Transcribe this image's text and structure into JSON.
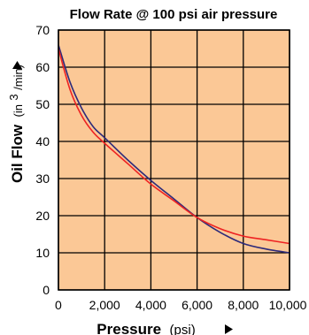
{
  "chart_data": {
    "type": "line",
    "title": "Flow Rate @ 100 psi air pressure",
    "xlabel": "Pressure",
    "xlabel_unit": "(psi)",
    "ylabel": "Oil Flow",
    "ylabel_unit_open": "(in",
    "ylabel_unit_sup": "3",
    "ylabel_unit_close": "/min)",
    "xlim": [
      0,
      10000
    ],
    "ylim": [
      0,
      70
    ],
    "x_ticks": [
      0,
      2000,
      4000,
      6000,
      8000,
      10000
    ],
    "x_tick_labels": [
      "0",
      "2,000",
      "4,000",
      "6,000",
      "8,000",
      "10,000"
    ],
    "y_ticks": [
      0,
      10,
      20,
      30,
      40,
      50,
      60,
      70
    ],
    "y_tick_labels": [
      "0",
      "10",
      "20",
      "30",
      "40",
      "50",
      "60",
      "70"
    ],
    "grid": true,
    "background_color": "#fbc896",
    "series": [
      {
        "color": "#2d2a7a",
        "x": [
          0,
          500,
          1000,
          1500,
          2000,
          3000,
          4000,
          5000,
          6000,
          7000,
          8000,
          9000,
          10000
        ],
        "y": [
          66,
          56,
          49,
          44,
          41,
          35,
          29.5,
          24.5,
          19.5,
          15.5,
          12.5,
          11,
          10
        ]
      },
      {
        "color": "#ee2222",
        "x": [
          0,
          500,
          1000,
          1500,
          2000,
          3000,
          4000,
          5000,
          6000,
          7000,
          8000,
          9000,
          10000
        ],
        "y": [
          65,
          54,
          47,
          42.5,
          39.5,
          34,
          28.5,
          24,
          19.5,
          16.5,
          14.5,
          13.5,
          12.5
        ]
      }
    ]
  }
}
